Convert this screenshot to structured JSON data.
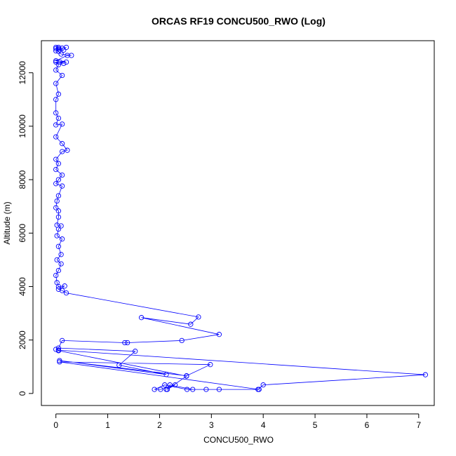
{
  "chart_data": {
    "type": "line",
    "title": "ORCAS RF19 CONCU500_RWO (Log)",
    "xlabel": "CONCU500_RWO",
    "ylabel": "Altitude (m)",
    "xlim": [
      -0.28,
      7.3
    ],
    "ylim": [
      -450,
      13200
    ],
    "xticks": [
      0,
      1,
      2,
      3,
      4,
      5,
      6,
      7
    ],
    "yticks": [
      0,
      2000,
      4000,
      6000,
      8000,
      10000,
      12000
    ],
    "grid": false,
    "legend": "none",
    "marker": "open-circle",
    "color": "#0000ff",
    "series": [
      {
        "points": [
          [
            2.13,
            150
          ],
          [
            2.2,
            320
          ],
          [
            2.64,
            150
          ],
          [
            2.9,
            150
          ],
          [
            3.15,
            150
          ],
          [
            3.9,
            150
          ],
          [
            4.0,
            320
          ],
          [
            7.13,
            700
          ],
          [
            0.05,
            1620
          ],
          [
            0.0,
            1650
          ],
          [
            0.05,
            1600
          ],
          [
            2.52,
            650
          ],
          [
            2.15,
            150
          ],
          [
            2.3,
            320
          ],
          [
            2.02,
            150
          ],
          [
            1.9,
            150
          ],
          [
            2.1,
            320
          ],
          [
            2.53,
            150
          ],
          [
            3.92,
            150
          ],
          [
            0.07,
            1180
          ],
          [
            2.98,
            1080
          ],
          [
            2.52,
            660
          ],
          [
            0.07,
            1230
          ],
          [
            2.13,
            710
          ],
          [
            1.22,
            1060
          ],
          [
            1.53,
            1580
          ],
          [
            0.05,
            1700
          ],
          [
            0.12,
            1980
          ],
          [
            1.33,
            1900
          ],
          [
            1.38,
            1900
          ],
          [
            2.43,
            1980
          ],
          [
            3.15,
            2210
          ],
          [
            1.65,
            2840
          ],
          [
            2.6,
            2590
          ],
          [
            2.75,
            2860
          ],
          [
            0.2,
            3760
          ],
          [
            0.12,
            3850
          ],
          [
            0.05,
            3900
          ],
          [
            0.17,
            4020
          ],
          [
            0.05,
            4000
          ],
          [
            0.02,
            4150
          ],
          [
            0.0,
            4420
          ],
          [
            0.05,
            4600
          ],
          [
            0.1,
            4850
          ],
          [
            0.02,
            5000
          ],
          [
            0.1,
            5200
          ],
          [
            0.05,
            5500
          ],
          [
            0.12,
            5780
          ],
          [
            0.02,
            5900
          ],
          [
            0.05,
            6150
          ],
          [
            0.1,
            6270
          ],
          [
            0.02,
            6300
          ],
          [
            0.05,
            6600
          ],
          [
            0.05,
            6830
          ],
          [
            0.0,
            6950
          ],
          [
            0.02,
            7200
          ],
          [
            0.05,
            7400
          ],
          [
            0.12,
            7760
          ],
          [
            0.0,
            7850
          ],
          [
            0.05,
            8000
          ],
          [
            0.12,
            8170
          ],
          [
            0.0,
            8380
          ],
          [
            0.05,
            8600
          ],
          [
            0.0,
            8760
          ],
          [
            0.12,
            9050
          ],
          [
            0.22,
            9100
          ],
          [
            0.12,
            9350
          ],
          [
            0.0,
            9600
          ],
          [
            0.12,
            10080
          ],
          [
            0.0,
            10050
          ],
          [
            0.05,
            10300
          ],
          [
            0.0,
            10500
          ],
          [
            0.0,
            11000
          ],
          [
            0.05,
            11200
          ],
          [
            0.0,
            11600
          ],
          [
            0.12,
            11900
          ],
          [
            0.0,
            12100
          ],
          [
            0.05,
            12300
          ],
          [
            0.0,
            12400
          ],
          [
            0.15,
            12350
          ],
          [
            0.08,
            12400
          ],
          [
            0.2,
            12400
          ],
          [
            0.0,
            12450
          ],
          [
            0.22,
            12650
          ],
          [
            0.3,
            12650
          ],
          [
            0.1,
            12700
          ],
          [
            0.05,
            12800
          ],
          [
            0.0,
            12820
          ],
          [
            0.15,
            12850
          ],
          [
            0.0,
            12900
          ],
          [
            0.05,
            12950
          ],
          [
            0.12,
            12920
          ],
          [
            0.2,
            12950
          ],
          [
            0.05,
            12900
          ],
          [
            0.0,
            12950
          ]
        ]
      }
    ]
  }
}
